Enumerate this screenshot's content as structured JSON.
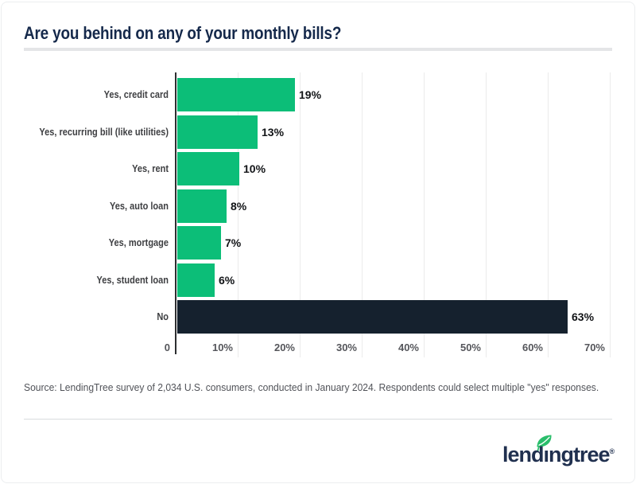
{
  "header": {
    "title": "Are you behind on any of your monthly bills?"
  },
  "chart_data": {
    "type": "bar",
    "orientation": "horizontal",
    "title": "Are you behind on any of your monthly bills?",
    "xlabel": "",
    "ylabel": "",
    "xlim": [
      0,
      70
    ],
    "grid": true,
    "value_suffix": "%",
    "categories": [
      "Yes, credit card",
      "Yes, recurring bill (like utilities)",
      "Yes, rent",
      "Yes, auto loan",
      "Yes, mortgage",
      "Yes, student loan",
      "No"
    ],
    "values": [
      19,
      13,
      10,
      8,
      7,
      6,
      63
    ],
    "items": [
      {
        "label": "Yes, credit card",
        "value": 19,
        "value_label": "19%",
        "color": "#0cbe78"
      },
      {
        "label": "Yes, recurring bill (like utilities)",
        "value": 13,
        "value_label": "13%",
        "color": "#0cbe78"
      },
      {
        "label": "Yes, rent",
        "value": 10,
        "value_label": "10%",
        "color": "#0cbe78"
      },
      {
        "label": "Yes, auto loan",
        "value": 8,
        "value_label": "8%",
        "color": "#0cbe78"
      },
      {
        "label": "Yes, mortgage",
        "value": 7,
        "value_label": "7%",
        "color": "#0cbe78"
      },
      {
        "label": "Yes, student loan",
        "value": 6,
        "value_label": "6%",
        "color": "#0cbe78"
      },
      {
        "label": "No",
        "value": 63,
        "value_label": "63%",
        "color": "#15212e"
      }
    ],
    "x_ticks": [
      {
        "label": "0",
        "value": 0
      },
      {
        "label": "10%",
        "value": 10
      },
      {
        "label": "20%",
        "value": 20
      },
      {
        "label": "30%",
        "value": 30
      },
      {
        "label": "40%",
        "value": 40
      },
      {
        "label": "50%",
        "value": 50
      },
      {
        "label": "60%",
        "value": 60
      },
      {
        "label": "70%",
        "value": 70
      }
    ],
    "colors": {
      "yes_bar": "#0cbe78",
      "no_bar": "#15212e",
      "axis": "#2d2f31",
      "gridline": "#ebebeb"
    }
  },
  "footer": {
    "source": "Source: LendingTree survey of 2,034 U.S. consumers, conducted in January 2024. Respondents could select multiple \"yes\" responses.",
    "logo": {
      "wordmark": "lendingtree",
      "registered_mark": "®",
      "text_color": "#20304f",
      "leaf_color": "#2abe6b"
    }
  }
}
